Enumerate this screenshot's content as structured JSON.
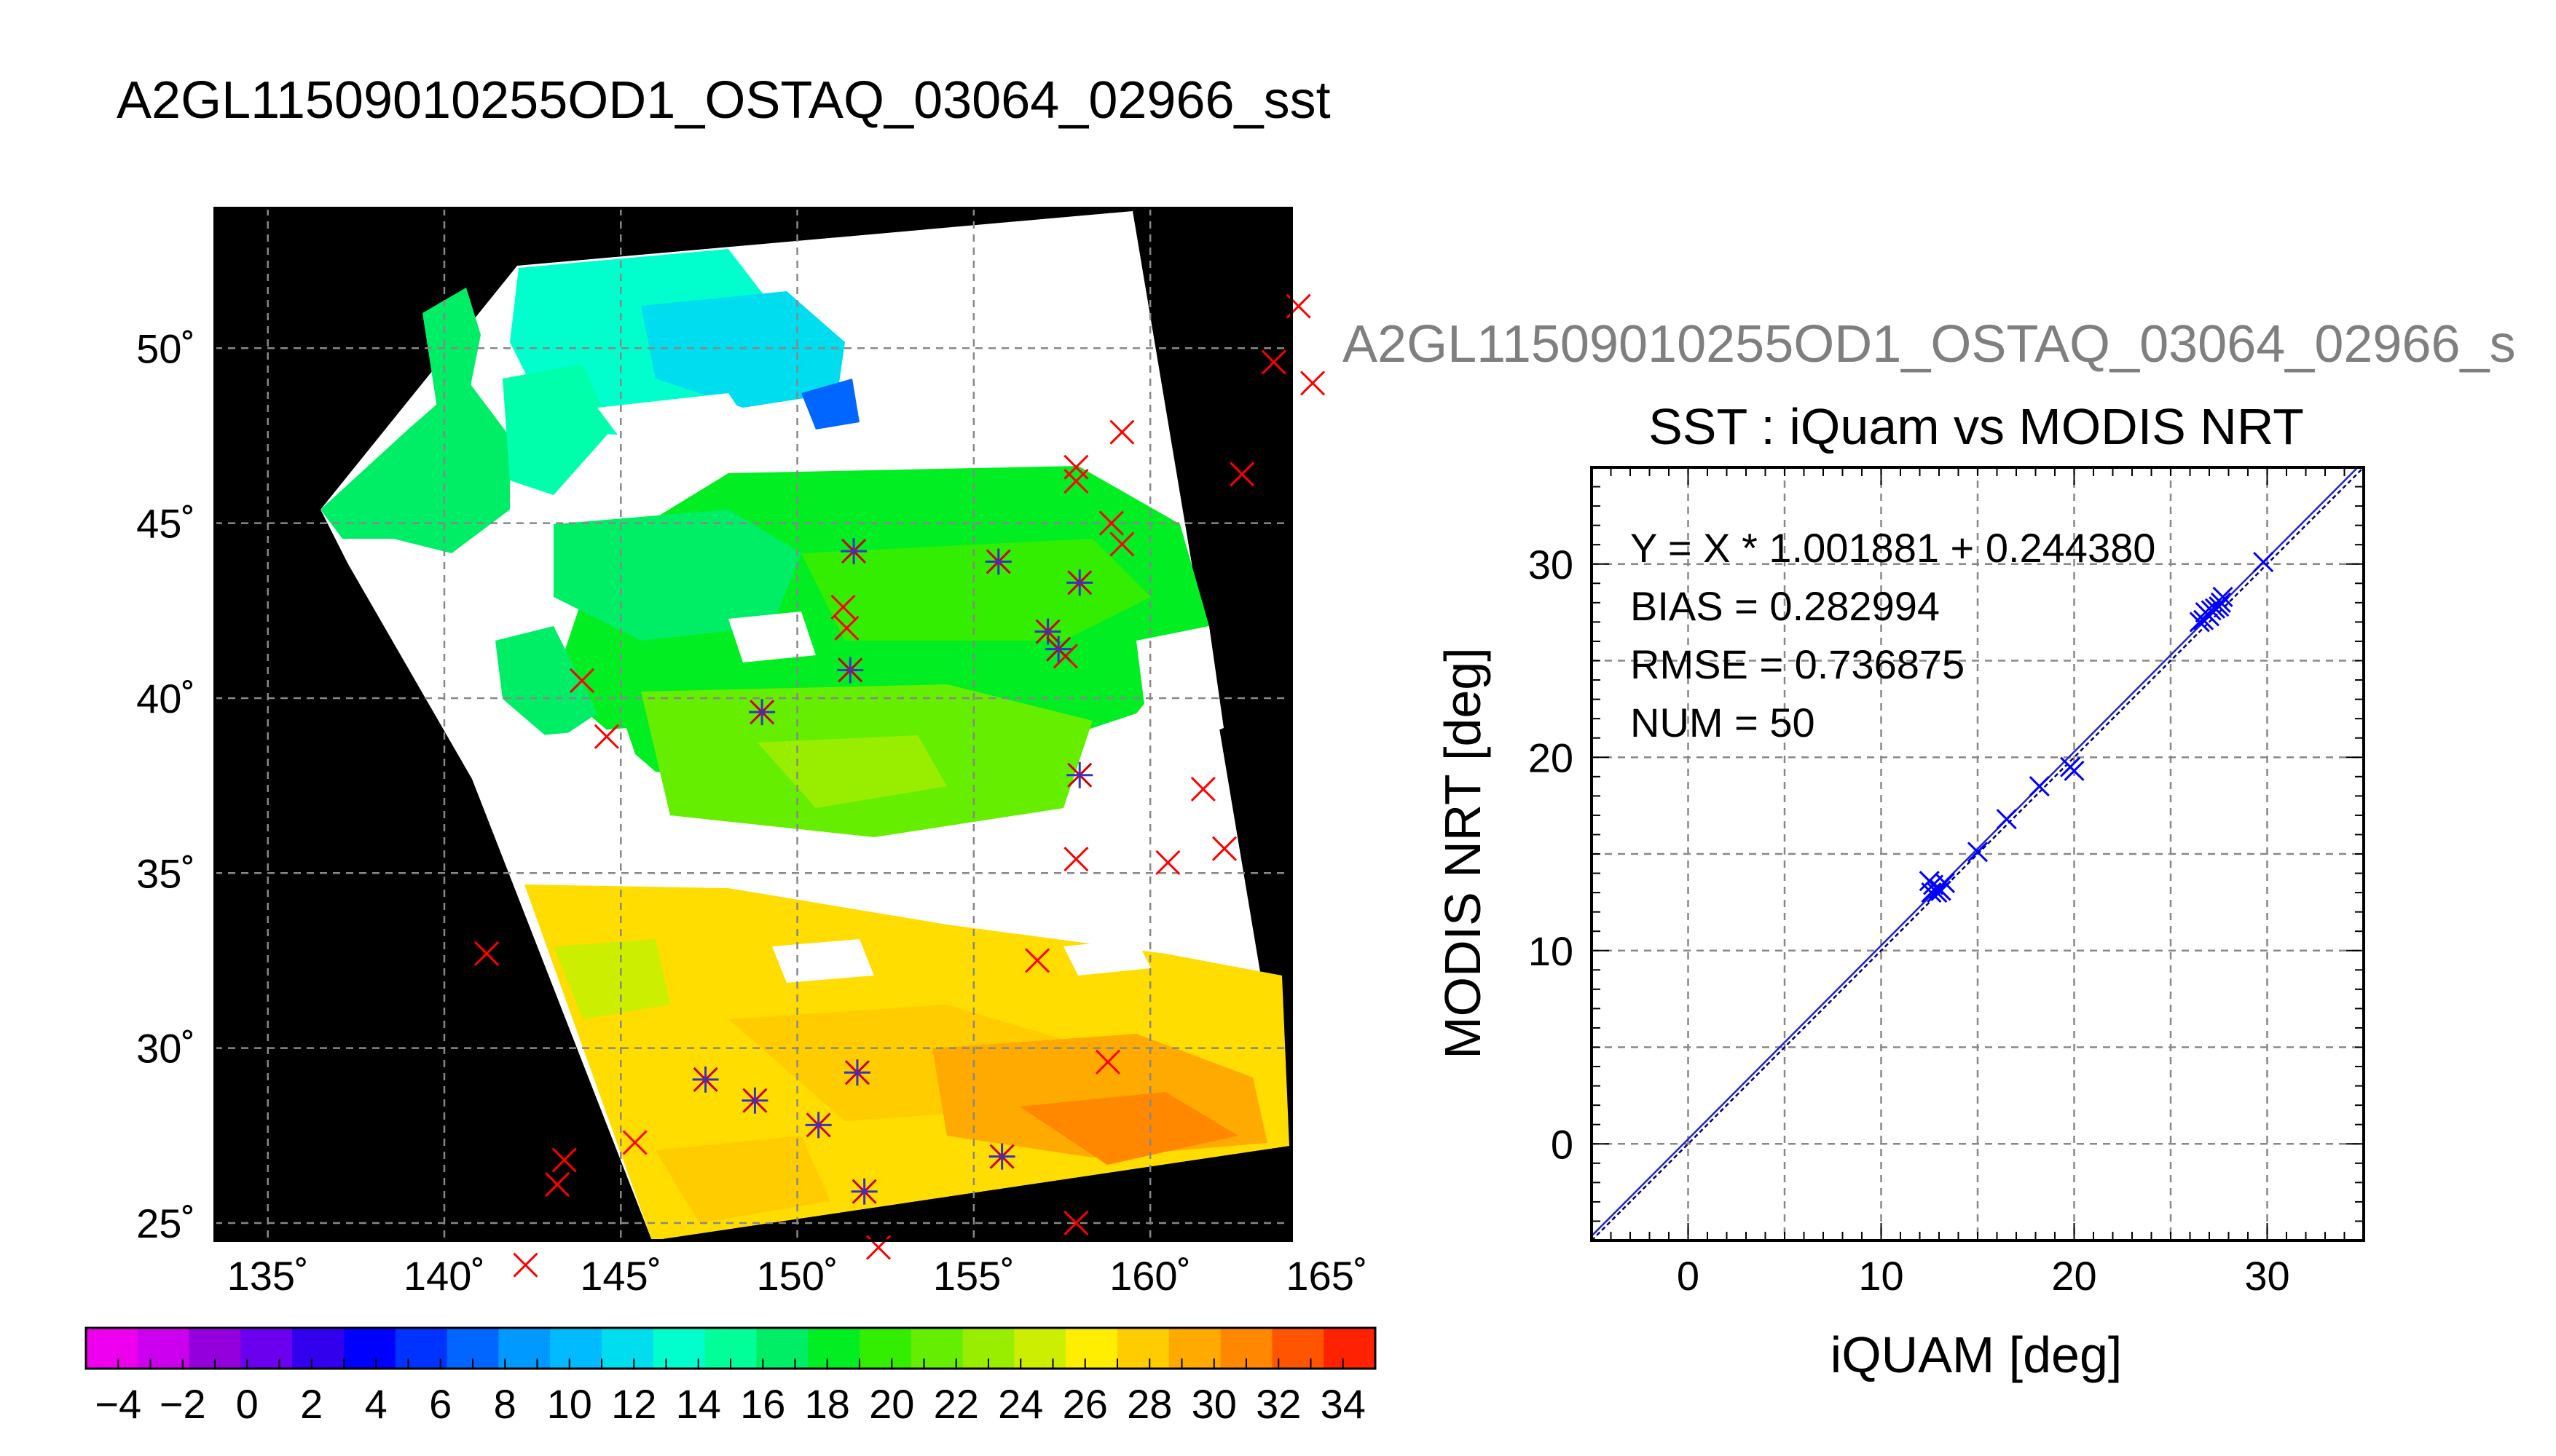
{
  "map": {
    "title": "A2GL11509010255OD1_OSTAQ_03064_02966_sst",
    "lon_labels": [
      "135˚",
      "140˚",
      "145˚",
      "150˚",
      "155˚",
      "160˚",
      "165˚"
    ],
    "lat_labels": [
      "25˚",
      "30˚",
      "35˚",
      "40˚",
      "45˚",
      "50˚"
    ],
    "lon_range": [
      133.5,
      164
    ],
    "lat_range": [
      24.5,
      54
    ],
    "colorbar": {
      "tick_labels": [
        "−4",
        "−2",
        "0",
        "2",
        "4",
        "6",
        "8",
        "10",
        "12",
        "14",
        "16",
        "18",
        "20",
        "22",
        "24",
        "26",
        "28",
        "30",
        "32",
        "34"
      ],
      "range": [
        -5,
        35
      ],
      "colors": [
        "#ee00ee",
        "#cc00ee",
        "#9400dd",
        "#6a00ee",
        "#3300ee",
        "#0000ff",
        "#0033ff",
        "#0066ff",
        "#0099ff",
        "#00bbff",
        "#00ddee",
        "#00ffcc",
        "#00ff99",
        "#00ee66",
        "#00ee22",
        "#33ee00",
        "#66ee00",
        "#99ee00",
        "#ccee00",
        "#ffee00",
        "#ffcc00",
        "#ffaa00",
        "#ff8800",
        "#ff5500",
        "#ff2200"
      ]
    },
    "markers": {
      "red_x": [
        [
          164.2,
          51.2
        ],
        [
          163.5,
          49.6
        ],
        [
          164.6,
          49.0
        ],
        [
          159.2,
          47.6
        ],
        [
          157.9,
          46.6
        ],
        [
          157.9,
          46.2
        ],
        [
          162.6,
          46.4
        ],
        [
          158.9,
          45.0
        ],
        [
          159.2,
          44.4
        ],
        [
          151.3,
          42.6
        ],
        [
          151.4,
          42.0
        ],
        [
          157.6,
          41.2
        ],
        [
          143.9,
          40.5
        ],
        [
          144.6,
          38.9
        ],
        [
          161.5,
          37.4
        ],
        [
          162.1,
          35.7
        ],
        [
          160.5,
          35.3
        ],
        [
          157.9,
          35.4
        ],
        [
          141.2,
          32.7
        ],
        [
          156.8,
          32.5
        ],
        [
          158.8,
          29.6
        ],
        [
          145.4,
          27.3
        ],
        [
          143.4,
          26.8
        ],
        [
          143.2,
          26.1
        ],
        [
          142.3,
          23.8
        ],
        [
          157.9,
          25.0
        ],
        [
          152.3,
          24.3
        ]
      ],
      "blue_star": [
        [
          151.6,
          44.2
        ],
        [
          155.7,
          43.9
        ],
        [
          158.0,
          43.3
        ],
        [
          157.1,
          41.9
        ],
        [
          157.4,
          41.4
        ],
        [
          151.5,
          40.8
        ],
        [
          149.0,
          39.6
        ],
        [
          158.0,
          37.8
        ],
        [
          147.4,
          29.1
        ],
        [
          148.8,
          28.5
        ],
        [
          151.7,
          29.3
        ],
        [
          150.6,
          27.8
        ],
        [
          155.8,
          26.9
        ],
        [
          151.9,
          25.9
        ]
      ]
    }
  },
  "scatter": {
    "file_title": "A2GL11509010255OD1_OSTAQ_03064_02966_s",
    "title": "SST : iQuam vs MODIS NRT",
    "xlabel": "iQUAM [deg]",
    "ylabel": "MODIS NRT [deg]",
    "x_ticks": [
      "0",
      "10",
      "20",
      "30"
    ],
    "y_ticks": [
      "0",
      "10",
      "20",
      "30"
    ],
    "stats": {
      "fit": "Y = X * 1.001881 + 0.244380",
      "bias": "BIAS = 0.282994",
      "rmse": "RMSE = 0.736875",
      "num": "NUM = 50"
    }
  },
  "chart_data": [
    {
      "type": "heatmap",
      "title": "A2GL11509010255OD1_OSTAQ_03064_02966_sst",
      "xlabel": "",
      "ylabel": "",
      "xlim": [
        133.5,
        164
      ],
      "ylim": [
        24.5,
        54
      ],
      "colorbar_range": [
        -5,
        35
      ],
      "grid": true
    },
    {
      "type": "scatter",
      "title": "SST : iQuam vs MODIS NRT",
      "xlabel": "iQUAM [deg]",
      "ylabel": "MODIS NRT [deg]",
      "xlim": [
        -5,
        35
      ],
      "ylim": [
        -5,
        35
      ],
      "grid": true,
      "fit": {
        "slope": 1.001881,
        "intercept": 0.24438
      },
      "x": [
        29.8,
        27.7,
        27.5,
        27.3,
        27.0,
        26.7,
        26.5,
        26.8,
        27.1,
        27.6,
        20.0,
        19.8,
        18.2,
        16.5,
        15.0,
        13.3,
        13.0,
        12.9,
        12.7,
        12.6,
        12.5,
        13.1
      ],
      "y": [
        30.1,
        28.3,
        27.8,
        27.7,
        27.3,
        27.1,
        27.0,
        27.5,
        27.6,
        28.0,
        19.3,
        19.5,
        18.5,
        16.8,
        15.1,
        13.5,
        13.2,
        13.0,
        13.4,
        13.0,
        13.6,
        13.1
      ]
    }
  ]
}
